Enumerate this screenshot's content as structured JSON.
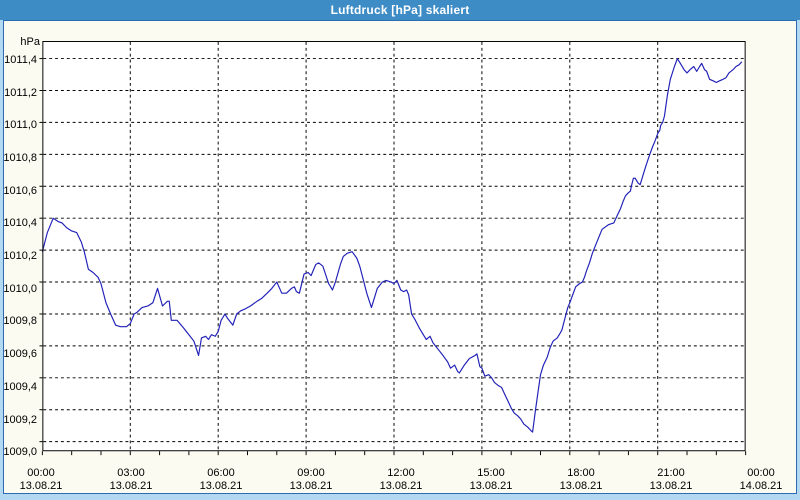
{
  "window": {
    "title": "Luftdruck [hPa] skaliert"
  },
  "colors": {
    "titlebar_bg": "#3e8cc6",
    "titlebar_text": "#ffffff",
    "frame": "#b3d8f2",
    "frame_line": "#2b6cb0",
    "body_bg": "#fbfbf2",
    "plot_bg": "#ffffff",
    "plot_border": "#000000",
    "grid": "#000000",
    "line": "#2121b8",
    "label_text": "#000000"
  },
  "chart_data": {
    "type": "line",
    "title": "Luftdruck [hPa] skaliert",
    "ylabel": "hPa",
    "grid": "dashed",
    "legend": "none",
    "xlim_hours": [
      0,
      24
    ],
    "ylim": [
      1008.94,
      1011.51
    ],
    "x_minor_tick_hours": 1,
    "y_ticks": [
      {
        "value": 1011.4,
        "label": "1011,4"
      },
      {
        "value": 1011.2,
        "label": "1011,2"
      },
      {
        "value": 1011.0,
        "label": "1011,0"
      },
      {
        "value": 1010.8,
        "label": "1010,8"
      },
      {
        "value": 1010.6,
        "label": "1010,6"
      },
      {
        "value": 1010.4,
        "label": "1010,4"
      },
      {
        "value": 1010.2,
        "label": "1010,2"
      },
      {
        "value": 1010.0,
        "label": "1010,0"
      },
      {
        "value": 1009.8,
        "label": "1009,8"
      },
      {
        "value": 1009.6,
        "label": "1009,6"
      },
      {
        "value": 1009.4,
        "label": "1009,4"
      },
      {
        "value": 1009.2,
        "label": "1009,2"
      },
      {
        "value": 1009.0,
        "label": "1009,0"
      }
    ],
    "x_ticks": [
      {
        "hour": 0,
        "time": "00:00",
        "date": "13.08.21"
      },
      {
        "hour": 3,
        "time": "03:00",
        "date": "13.08.21"
      },
      {
        "hour": 6,
        "time": "06:00",
        "date": "13.08.21"
      },
      {
        "hour": 9,
        "time": "09:00",
        "date": "13.08.21"
      },
      {
        "hour": 12,
        "time": "12:00",
        "date": "13.08.21"
      },
      {
        "hour": 15,
        "time": "15:00",
        "date": "13.08.21"
      },
      {
        "hour": 18,
        "time": "18:00",
        "date": "13.08.21"
      },
      {
        "hour": 21,
        "time": "21:00",
        "date": "13.08.21"
      },
      {
        "hour": 24,
        "time": "00:00",
        "date": "14.08.21"
      }
    ],
    "series": [
      {
        "name": "Luftdruck",
        "points": [
          [
            0.0,
            1010.19
          ],
          [
            0.17,
            1010.31
          ],
          [
            0.37,
            1010.4
          ],
          [
            0.53,
            1010.38
          ],
          [
            0.67,
            1010.37
          ],
          [
            0.83,
            1010.34
          ],
          [
            1.0,
            1010.32
          ],
          [
            1.17,
            1010.31
          ],
          [
            1.33,
            1010.25
          ],
          [
            1.43,
            1010.19
          ],
          [
            1.57,
            1010.08
          ],
          [
            1.73,
            1010.06
          ],
          [
            1.9,
            1010.03
          ],
          [
            2.0,
            1009.99
          ],
          [
            2.17,
            1009.87
          ],
          [
            2.33,
            1009.8
          ],
          [
            2.5,
            1009.73
          ],
          [
            2.67,
            1009.72
          ],
          [
            2.87,
            1009.72
          ],
          [
            3.0,
            1009.74
          ],
          [
            3.13,
            1009.8
          ],
          [
            3.23,
            1009.81
          ],
          [
            3.4,
            1009.84
          ],
          [
            3.6,
            1009.85
          ],
          [
            3.77,
            1009.87
          ],
          [
            3.93,
            1009.96
          ],
          [
            4.1,
            1009.85
          ],
          [
            4.27,
            1009.88
          ],
          [
            4.33,
            1009.88
          ],
          [
            4.4,
            1009.76
          ],
          [
            4.6,
            1009.76
          ],
          [
            4.83,
            1009.71
          ],
          [
            5.0,
            1009.67
          ],
          [
            5.17,
            1009.63
          ],
          [
            5.33,
            1009.54
          ],
          [
            5.43,
            1009.65
          ],
          [
            5.57,
            1009.66
          ],
          [
            5.67,
            1009.64
          ],
          [
            5.77,
            1009.67
          ],
          [
            5.9,
            1009.66
          ],
          [
            6.0,
            1009.69
          ],
          [
            6.1,
            1009.76
          ],
          [
            6.23,
            1009.8
          ],
          [
            6.33,
            1009.77
          ],
          [
            6.5,
            1009.73
          ],
          [
            6.63,
            1009.8
          ],
          [
            6.77,
            1009.82
          ],
          [
            6.9,
            1009.83
          ],
          [
            7.1,
            1009.85
          ],
          [
            7.33,
            1009.88
          ],
          [
            7.5,
            1009.9
          ],
          [
            7.67,
            1009.93
          ],
          [
            7.83,
            1009.96
          ],
          [
            8.0,
            1010.0
          ],
          [
            8.17,
            1009.93
          ],
          [
            8.33,
            1009.93
          ],
          [
            8.5,
            1009.96
          ],
          [
            8.6,
            1009.97
          ],
          [
            8.67,
            1009.94
          ],
          [
            8.77,
            1009.93
          ],
          [
            8.93,
            1010.05
          ],
          [
            9.07,
            1010.06
          ],
          [
            9.17,
            1010.04
          ],
          [
            9.33,
            1010.11
          ],
          [
            9.43,
            1010.12
          ],
          [
            9.57,
            1010.1
          ],
          [
            9.77,
            1009.99
          ],
          [
            9.9,
            1009.95
          ],
          [
            10.0,
            1010.0
          ],
          [
            10.17,
            1010.11
          ],
          [
            10.27,
            1010.16
          ],
          [
            10.4,
            1010.18
          ],
          [
            10.57,
            1010.19
          ],
          [
            10.73,
            1010.15
          ],
          [
            10.83,
            1010.1
          ],
          [
            10.93,
            1010.03
          ],
          [
            11.07,
            1009.93
          ],
          [
            11.23,
            1009.84
          ],
          [
            11.33,
            1009.9
          ],
          [
            11.43,
            1009.96
          ],
          [
            11.6,
            1010.0
          ],
          [
            11.73,
            1010.01
          ],
          [
            11.9,
            1010.0
          ],
          [
            12.0,
            1009.99
          ],
          [
            12.1,
            1010.01
          ],
          [
            12.23,
            1009.95
          ],
          [
            12.33,
            1009.94
          ],
          [
            12.43,
            1009.95
          ],
          [
            12.5,
            1009.92
          ],
          [
            12.6,
            1009.8
          ],
          [
            12.73,
            1009.76
          ],
          [
            12.87,
            1009.71
          ],
          [
            13.0,
            1009.67
          ],
          [
            13.1,
            1009.64
          ],
          [
            13.23,
            1009.66
          ],
          [
            13.33,
            1009.62
          ],
          [
            13.5,
            1009.58
          ],
          [
            13.67,
            1009.54
          ],
          [
            13.83,
            1009.5
          ],
          [
            13.93,
            1009.46
          ],
          [
            14.07,
            1009.48
          ],
          [
            14.17,
            1009.44
          ],
          [
            14.23,
            1009.43
          ],
          [
            14.4,
            1009.48
          ],
          [
            14.57,
            1009.52
          ],
          [
            14.77,
            1009.54
          ],
          [
            14.83,
            1009.55
          ],
          [
            14.93,
            1009.47
          ],
          [
            15.0,
            1009.46
          ],
          [
            15.1,
            1009.41
          ],
          [
            15.23,
            1009.42
          ],
          [
            15.33,
            1009.4
          ],
          [
            15.43,
            1009.37
          ],
          [
            15.57,
            1009.35
          ],
          [
            15.67,
            1009.34
          ],
          [
            15.77,
            1009.3
          ],
          [
            15.9,
            1009.25
          ],
          [
            16.0,
            1009.21
          ],
          [
            16.1,
            1009.18
          ],
          [
            16.23,
            1009.16
          ],
          [
            16.33,
            1009.14
          ],
          [
            16.43,
            1009.11
          ],
          [
            16.57,
            1009.09
          ],
          [
            16.67,
            1009.07
          ],
          [
            16.73,
            1009.06
          ],
          [
            16.83,
            1009.2
          ],
          [
            16.93,
            1009.33
          ],
          [
            17.0,
            1009.42
          ],
          [
            17.1,
            1009.48
          ],
          [
            17.23,
            1009.53
          ],
          [
            17.33,
            1009.59
          ],
          [
            17.43,
            1009.63
          ],
          [
            17.57,
            1009.65
          ],
          [
            17.67,
            1009.68
          ],
          [
            17.73,
            1009.7
          ],
          [
            17.83,
            1009.77
          ],
          [
            17.93,
            1009.84
          ],
          [
            18.0,
            1009.87
          ],
          [
            18.1,
            1009.92
          ],
          [
            18.2,
            1009.97
          ],
          [
            18.33,
            1009.99
          ],
          [
            18.43,
            1010.0
          ],
          [
            18.5,
            1010.03
          ],
          [
            18.57,
            1010.07
          ],
          [
            18.67,
            1010.12
          ],
          [
            18.77,
            1010.18
          ],
          [
            18.9,
            1010.24
          ],
          [
            19.1,
            1010.33
          ],
          [
            19.33,
            1010.36
          ],
          [
            19.5,
            1010.37
          ],
          [
            19.6,
            1010.41
          ],
          [
            19.73,
            1010.46
          ],
          [
            19.83,
            1010.51
          ],
          [
            19.9,
            1010.54
          ],
          [
            20.0,
            1010.56
          ],
          [
            20.07,
            1010.57
          ],
          [
            20.1,
            1010.6
          ],
          [
            20.17,
            1010.65
          ],
          [
            20.23,
            1010.65
          ],
          [
            20.33,
            1010.62
          ],
          [
            20.4,
            1010.61
          ],
          [
            20.5,
            1010.67
          ],
          [
            20.6,
            1010.73
          ],
          [
            20.73,
            1010.8
          ],
          [
            20.83,
            1010.85
          ],
          [
            20.9,
            1010.88
          ],
          [
            21.0,
            1010.93
          ],
          [
            21.07,
            1010.95
          ],
          [
            21.1,
            1010.98
          ],
          [
            21.17,
            1011.0
          ],
          [
            21.23,
            1011.04
          ],
          [
            21.33,
            1011.17
          ],
          [
            21.43,
            1011.27
          ],
          [
            21.57,
            1011.35
          ],
          [
            21.67,
            1011.4
          ],
          [
            21.77,
            1011.37
          ],
          [
            21.9,
            1011.33
          ],
          [
            22.0,
            1011.31
          ],
          [
            22.1,
            1011.33
          ],
          [
            22.23,
            1011.35
          ],
          [
            22.33,
            1011.32
          ],
          [
            22.43,
            1011.35
          ],
          [
            22.5,
            1011.37
          ],
          [
            22.6,
            1011.33
          ],
          [
            22.67,
            1011.32
          ],
          [
            22.77,
            1011.27
          ],
          [
            22.9,
            1011.26
          ],
          [
            23.0,
            1011.25
          ],
          [
            23.1,
            1011.26
          ],
          [
            23.23,
            1011.27
          ],
          [
            23.33,
            1011.28
          ],
          [
            23.43,
            1011.31
          ],
          [
            23.57,
            1011.33
          ],
          [
            23.67,
            1011.35
          ],
          [
            23.77,
            1011.36
          ],
          [
            23.87,
            1011.38
          ]
        ]
      }
    ]
  }
}
